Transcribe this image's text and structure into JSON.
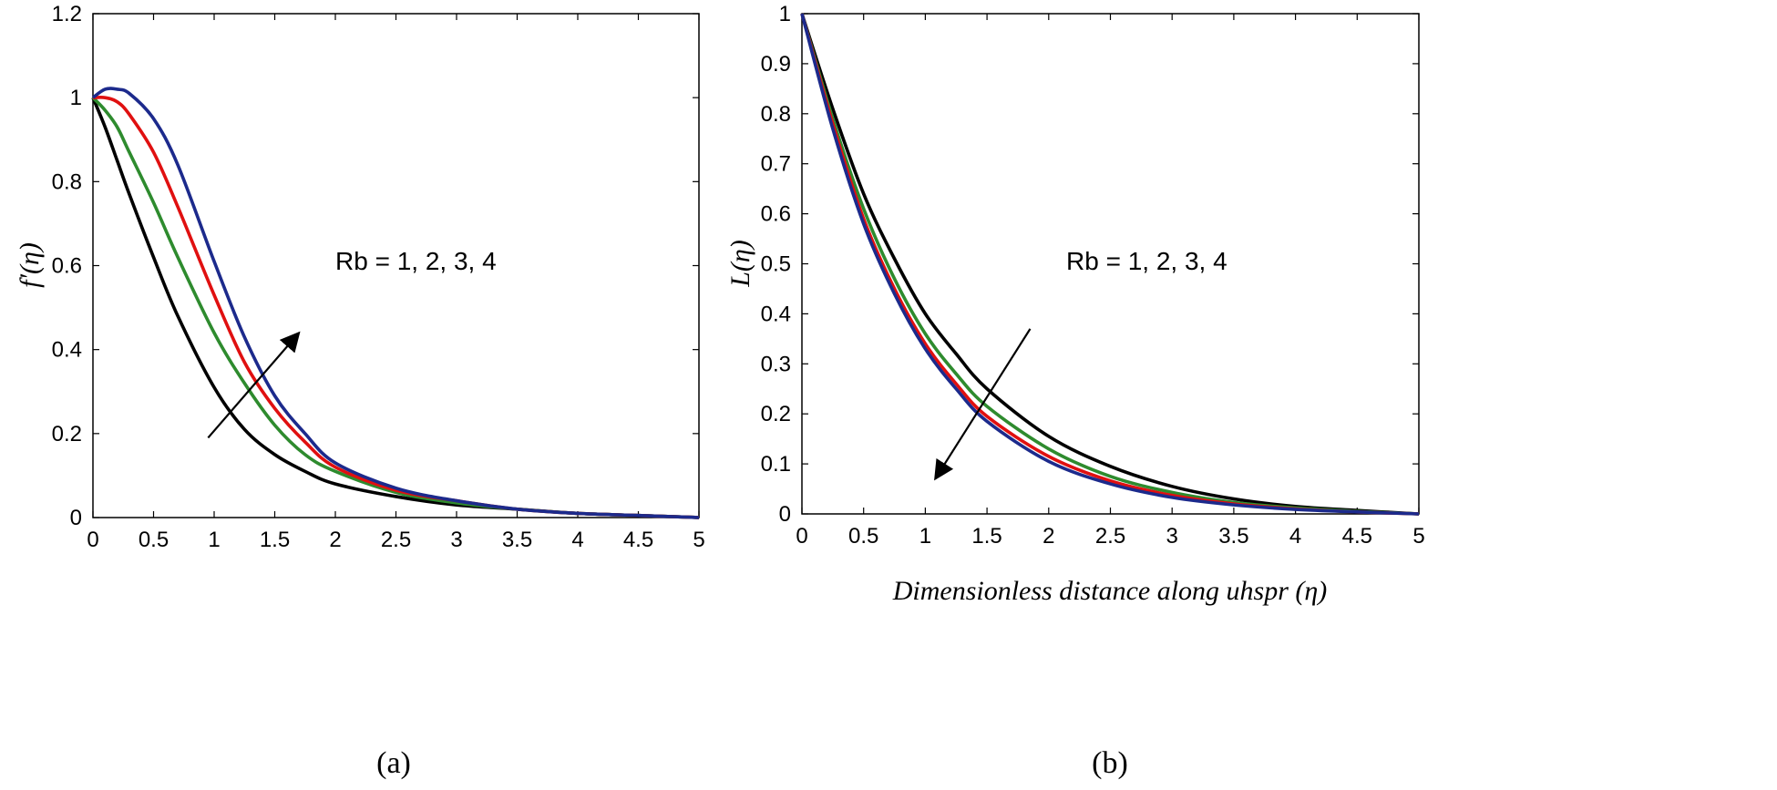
{
  "chart_data": [
    {
      "type": "line",
      "panel_caption": "(a)",
      "title": "",
      "xlabel": "",
      "ylabel": "f′(η)",
      "xlim": [
        0,
        5
      ],
      "ylim": [
        0,
        1.2
      ],
      "xticks": [
        "0",
        "0.5",
        "1",
        "1.5",
        "2",
        "2.5",
        "3",
        "3.5",
        "4",
        "4.5",
        "5"
      ],
      "yticks": [
        "0",
        "0.2",
        "0.4",
        "0.6",
        "0.8",
        "1",
        "1.2"
      ],
      "annotation": "Rb = 1, 2, 3, 4",
      "arrow_direction": "increasing",
      "x": [
        0,
        0.1,
        0.2,
        0.3,
        0.5,
        0.7,
        1.0,
        1.25,
        1.5,
        1.75,
        2.0,
        2.5,
        3.0,
        3.5,
        4.0,
        4.5,
        5.0
      ],
      "series": [
        {
          "name": "Rb = 1",
          "color": "#000000",
          "values": [
            1.0,
            0.93,
            0.85,
            0.77,
            0.62,
            0.48,
            0.31,
            0.21,
            0.15,
            0.11,
            0.08,
            0.05,
            0.03,
            0.02,
            0.01,
            0.005,
            0.0
          ]
        },
        {
          "name": "Rb = 2",
          "color": "#2e8b2e",
          "values": [
            1.0,
            0.97,
            0.93,
            0.87,
            0.75,
            0.62,
            0.44,
            0.32,
            0.22,
            0.15,
            0.11,
            0.06,
            0.035,
            0.02,
            0.01,
            0.005,
            0.0
          ]
        },
        {
          "name": "Rb = 3",
          "color": "#e01010",
          "values": [
            1.0,
            1.0,
            0.99,
            0.96,
            0.87,
            0.74,
            0.53,
            0.37,
            0.26,
            0.18,
            0.12,
            0.065,
            0.04,
            0.02,
            0.01,
            0.005,
            0.0
          ]
        },
        {
          "name": "Rb = 4",
          "color": "#1c2a8c",
          "values": [
            1.0,
            1.02,
            1.02,
            1.01,
            0.95,
            0.84,
            0.61,
            0.43,
            0.29,
            0.2,
            0.13,
            0.07,
            0.04,
            0.02,
            0.01,
            0.005,
            0.0
          ]
        }
      ]
    },
    {
      "type": "line",
      "panel_caption": "(b)",
      "title": "",
      "xlabel": "Dimensionless distance along uhspr (η)",
      "ylabel": "L(η)",
      "xlim": [
        0,
        5
      ],
      "ylim": [
        0,
        1
      ],
      "xticks": [
        "0",
        "0.5",
        "1",
        "1.5",
        "2",
        "2.5",
        "3",
        "3.5",
        "4",
        "4.5",
        "5"
      ],
      "yticks": [
        "0",
        "0.1",
        "0.2",
        "0.3",
        "0.4",
        "0.5",
        "0.6",
        "0.7",
        "0.8",
        "0.9",
        "1"
      ],
      "annotation": "Rb = 1, 2, 3, 4",
      "arrow_direction": "decreasing",
      "x": [
        0,
        0.25,
        0.5,
        0.75,
        1.0,
        1.25,
        1.5,
        2.0,
        2.5,
        3.0,
        3.5,
        4.0,
        4.5,
        5.0
      ],
      "series": [
        {
          "name": "Rb = 1",
          "color": "#000000",
          "values": [
            1.0,
            0.81,
            0.64,
            0.51,
            0.4,
            0.32,
            0.25,
            0.155,
            0.095,
            0.055,
            0.03,
            0.015,
            0.007,
            0.0
          ]
        },
        {
          "name": "Rb = 2",
          "color": "#2e8b2e",
          "values": [
            1.0,
            0.79,
            0.61,
            0.47,
            0.36,
            0.28,
            0.215,
            0.13,
            0.075,
            0.043,
            0.023,
            0.012,
            0.005,
            0.0
          ]
        },
        {
          "name": "Rb = 3",
          "color": "#e01010",
          "values": [
            1.0,
            0.78,
            0.59,
            0.45,
            0.34,
            0.26,
            0.195,
            0.115,
            0.066,
            0.037,
            0.02,
            0.01,
            0.004,
            0.0
          ]
        },
        {
          "name": "Rb = 4",
          "color": "#1c2a8c",
          "values": [
            1.0,
            0.77,
            0.58,
            0.44,
            0.33,
            0.25,
            0.185,
            0.105,
            0.06,
            0.033,
            0.018,
            0.009,
            0.004,
            0.0
          ]
        }
      ]
    }
  ]
}
